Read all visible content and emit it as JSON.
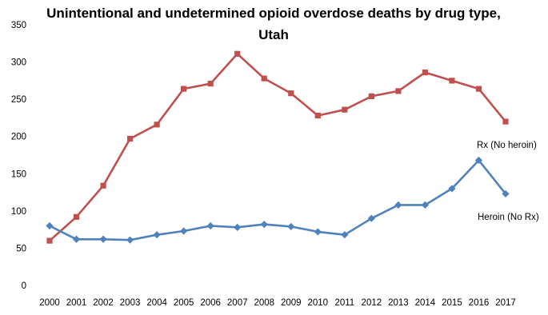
{
  "chart_data": {
    "type": "line",
    "title": "Unintentional and undetermined opioid overdose deaths by drug type,",
    "subtitle": "Utah",
    "xlabel": "",
    "ylabel": "",
    "ylim": [
      0,
      350
    ],
    "yticks": [
      0,
      50,
      100,
      150,
      200,
      250,
      300,
      350
    ],
    "x": [
      "2000",
      "2001",
      "2002",
      "2003",
      "2004",
      "2005",
      "2006",
      "2007",
      "2008",
      "2009",
      "2010",
      "2011",
      "2012",
      "2013",
      "2014",
      "2015",
      "2016",
      "2017"
    ],
    "grid": false,
    "legend": "none",
    "series": [
      {
        "name": "Rx (No heroin)",
        "color": "#C0504D",
        "marker": "square",
        "values": [
          60,
          92,
          134,
          197,
          216,
          264,
          271,
          311,
          278,
          258,
          228,
          236,
          254,
          261,
          286,
          275,
          264,
          220
        ]
      },
      {
        "name": "Heroin (No Rx)",
        "color": "#4F81BD",
        "marker": "diamond",
        "values": [
          80,
          62,
          62,
          61,
          68,
          73,
          80,
          78,
          82,
          79,
          72,
          68,
          90,
          108,
          108,
          130,
          168,
          123
        ]
      }
    ]
  }
}
